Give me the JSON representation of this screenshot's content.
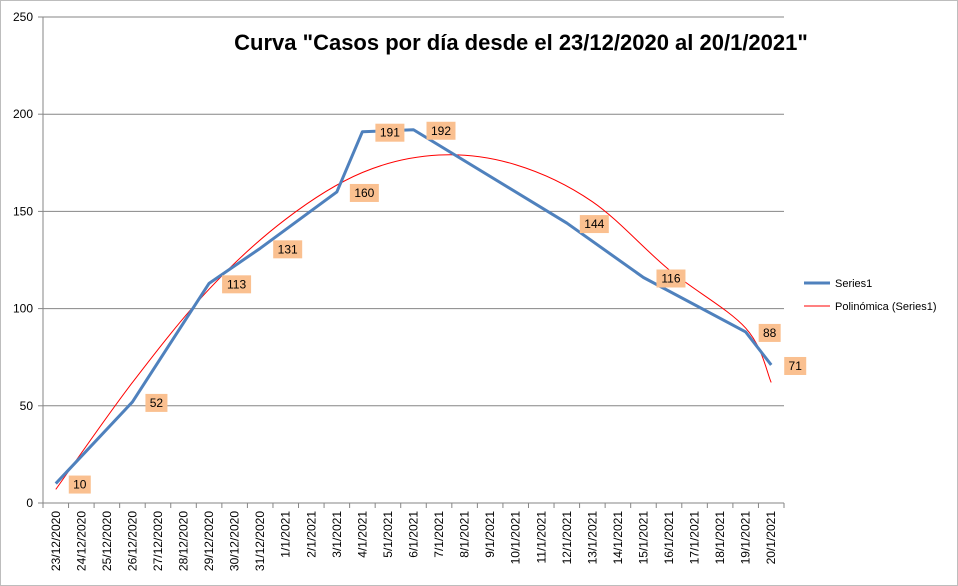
{
  "chart_data": {
    "type": "line",
    "title": "Curva \"Casos por día desde el 23/12/2020  al 20/1/2021\"",
    "categories": [
      "23/12/2020",
      "24/12/2020",
      "25/12/2020",
      "26/12/2020",
      "27/12/2020",
      "28/12/2020",
      "29/12/2020",
      "30/12/2020",
      "31/12/2020",
      "1/1/2021",
      "2/1/2021",
      "3/1/2021",
      "4/1/2021",
      "5/1/2021",
      "6/1/2021",
      "7/1/2021",
      "8/1/2021",
      "9/1/2021",
      "10/1/2021",
      "11/1/2021",
      "12/1/2021",
      "13/1/2021",
      "14/1/2021",
      "15/1/2021",
      "16/1/2021",
      "17/1/2021",
      "18/1/2021",
      "19/1/2021",
      "20/1/2021"
    ],
    "ylim": [
      0,
      250
    ],
    "yticks": [
      "0",
      "50",
      "100",
      "150",
      "200",
      "250"
    ],
    "grid": true,
    "legend_position": "right",
    "series": [
      {
        "name": "Series1",
        "color": "#4f81bd",
        "points": [
          {
            "x": "23/12/2020",
            "y": 10
          },
          {
            "x": "26/12/2020",
            "y": 52
          },
          {
            "x": "29/12/2020",
            "y": 113
          },
          {
            "x": "31/12/2020",
            "y": 131
          },
          {
            "x": "3/1/2021",
            "y": 160
          },
          {
            "x": "4/1/2021",
            "y": 191
          },
          {
            "x": "6/1/2021",
            "y": 192
          },
          {
            "x": "12/1/2021",
            "y": 144
          },
          {
            "x": "15/1/2021",
            "y": 116
          },
          {
            "x": "19/1/2021",
            "y": 88
          },
          {
            "x": "20/1/2021",
            "y": 71
          }
        ]
      }
    ],
    "trendline": {
      "name": "Polinómica (Series1)",
      "color": "#ff0000",
      "type": "polynomial",
      "points": [
        {
          "x": "23/12/2020",
          "y": 7
        },
        {
          "x": "26/12/2020",
          "y": 62
        },
        {
          "x": "29/12/2020",
          "y": 110
        },
        {
          "x": "1/1/2021",
          "y": 146
        },
        {
          "x": "4/1/2021",
          "y": 170
        },
        {
          "x": "7/1/2021",
          "y": 179
        },
        {
          "x": "10/1/2021",
          "y": 174
        },
        {
          "x": "13/1/2021",
          "y": 155
        },
        {
          "x": "16/1/2021",
          "y": 120
        },
        {
          "x": "19/1/2021",
          "y": 90
        },
        {
          "x": "20/1/2021",
          "y": 62
        }
      ]
    },
    "data_label_color": "#fac090"
  }
}
